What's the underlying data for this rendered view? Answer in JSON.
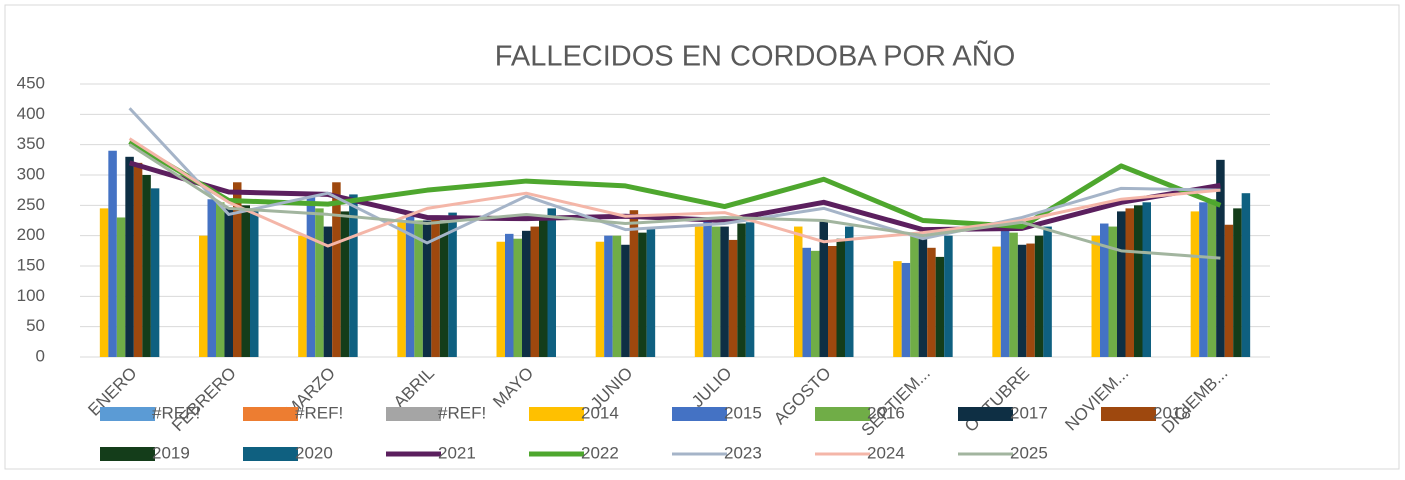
{
  "chart_data": {
    "type": "bar",
    "title": "FALLECIDOS EN CORDOBA POR AÑO",
    "categories": [
      "ENERO",
      "FEBRERO",
      "MARZO",
      "ABRIL",
      "MAYO",
      "JUNIO",
      "JULIO",
      "AGOSTO",
      "SEPTIEM...",
      "OCTUBRE",
      "NOVIEM...",
      "DICIEMB..."
    ],
    "ylim": [
      0,
      450
    ],
    "yticks": [
      0,
      50,
      100,
      150,
      200,
      250,
      300,
      350,
      400,
      450
    ],
    "grid": true,
    "legend": "bottom",
    "series": [
      {
        "name": "#REF!",
        "type": "bar",
        "color": "#5b9bd5",
        "values": [
          null,
          null,
          null,
          null,
          null,
          null,
          null,
          null,
          null,
          null,
          null,
          null
        ]
      },
      {
        "name": "#REF!",
        "type": "bar",
        "color": "#ed7d31",
        "values": [
          null,
          null,
          null,
          null,
          null,
          null,
          null,
          null,
          null,
          null,
          null,
          null
        ]
      },
      {
        "name": "#REF!",
        "type": "bar",
        "color": "#a5a5a5",
        "values": [
          null,
          null,
          null,
          null,
          null,
          null,
          null,
          null,
          null,
          null,
          null,
          null
        ]
      },
      {
        "name": "2014",
        "type": "bar",
        "color": "#ffc000",
        "values": [
          245,
          200,
          200,
          222,
          190,
          190,
          215,
          215,
          158,
          182,
          200,
          240
        ]
      },
      {
        "name": "2015",
        "type": "bar",
        "color": "#4472c4",
        "values": [
          340,
          260,
          265,
          240,
          203,
          200,
          230,
          180,
          155,
          215,
          220,
          255
        ]
      },
      {
        "name": "2016",
        "type": "bar",
        "color": "#70ad47",
        "values": [
          230,
          255,
          245,
          225,
          195,
          200,
          215,
          175,
          200,
          205,
          215,
          260
        ]
      },
      {
        "name": "2017",
        "type": "bar",
        "color": "#0e2f44",
        "values": [
          330,
          245,
          215,
          225,
          208,
          185,
          215,
          225,
          195,
          185,
          240,
          325
        ]
      },
      {
        "name": "2018",
        "type": "bar",
        "color": "#9e480e",
        "values": [
          320,
          288,
          288,
          230,
          215,
          242,
          193,
          183,
          180,
          187,
          245,
          218
        ]
      },
      {
        "name": "2019",
        "type": "bar",
        "color": "#143d1a",
        "values": [
          300,
          250,
          240,
          225,
          230,
          205,
          220,
          195,
          165,
          200,
          250,
          245
        ]
      },
      {
        "name": "2020",
        "type": "bar",
        "color": "#0f6080",
        "values": [
          278,
          245,
          268,
          238,
          245,
          212,
          222,
          215,
          200,
          215,
          255,
          270
        ]
      },
      {
        "name": "2021",
        "type": "line",
        "color": "#5b1f5e",
        "width": 5,
        "values": [
          320,
          272,
          268,
          230,
          228,
          232,
          225,
          255,
          210,
          212,
          255,
          283
        ]
      },
      {
        "name": "2022",
        "type": "line",
        "color": "#4ea72e",
        "width": 5,
        "values": [
          355,
          258,
          252,
          275,
          290,
          282,
          248,
          293,
          225,
          215,
          315,
          250
        ]
      },
      {
        "name": "2023",
        "type": "line",
        "color": "#a5b4c8",
        "width": 3,
        "values": [
          410,
          235,
          270,
          188,
          265,
          210,
          220,
          245,
          195,
          230,
          278,
          275
        ]
      },
      {
        "name": "2024",
        "type": "line",
        "color": "#f4b6a8",
        "width": 3,
        "values": [
          360,
          255,
          183,
          245,
          270,
          232,
          238,
          190,
          205,
          225,
          260,
          275
        ]
      },
      {
        "name": "2025",
        "type": "line",
        "color": "#a2b59f",
        "width": 3,
        "values": [
          350,
          245,
          235,
          220,
          235,
          220,
          230,
          225,
          200,
          222,
          175,
          163
        ]
      }
    ]
  }
}
